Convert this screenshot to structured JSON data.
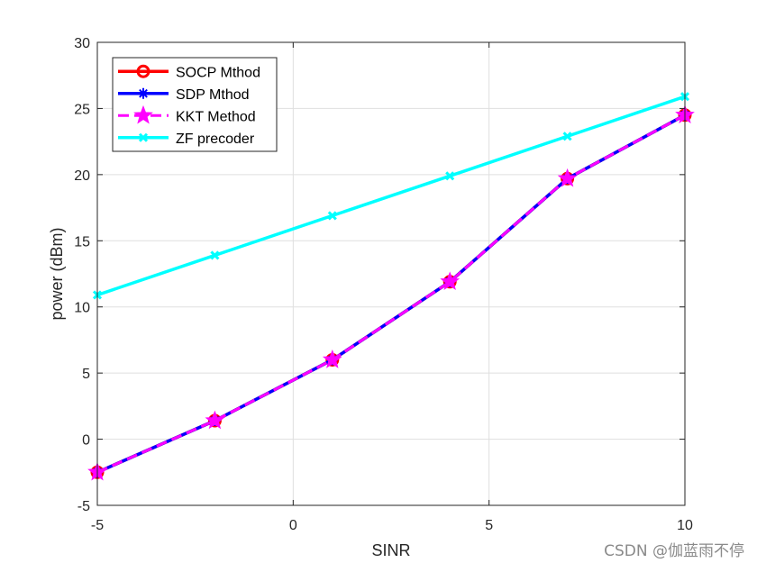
{
  "chart_data": {
    "type": "line",
    "xlabel": "SINR",
    "ylabel": "power (dBm)",
    "xlim": [
      -5,
      10
    ],
    "ylim": [
      -5,
      30
    ],
    "x_ticks": [
      -5,
      0,
      5,
      10
    ],
    "y_ticks": [
      -5,
      0,
      5,
      10,
      15,
      20,
      25,
      30
    ],
    "grid": true,
    "legend_position": "top-left",
    "x": [
      -5,
      -2,
      1,
      4,
      7,
      10
    ],
    "series": [
      {
        "name": "SOCP Mthod",
        "values": [
          -2.5,
          1.4,
          6.0,
          11.9,
          19.7,
          24.5
        ],
        "color": "#ff0000",
        "marker": "circle",
        "line_style": "solid"
      },
      {
        "name": "SDP Mthod",
        "values": [
          -2.5,
          1.4,
          6.0,
          11.9,
          19.7,
          24.5
        ],
        "color": "#0000ff",
        "marker": "asterisk",
        "line_style": "solid"
      },
      {
        "name": "KKT Method",
        "values": [
          -2.5,
          1.4,
          6.0,
          11.9,
          19.7,
          24.5
        ],
        "color": "#ff00ff",
        "marker": "star",
        "line_style": "dashed"
      },
      {
        "name": "ZF precoder",
        "values": [
          10.9,
          13.9,
          16.9,
          19.9,
          22.9,
          25.9
        ],
        "color": "#00ffff",
        "marker": "x",
        "line_style": "solid"
      }
    ]
  },
  "watermark": "CSDN @伽蓝雨不停"
}
